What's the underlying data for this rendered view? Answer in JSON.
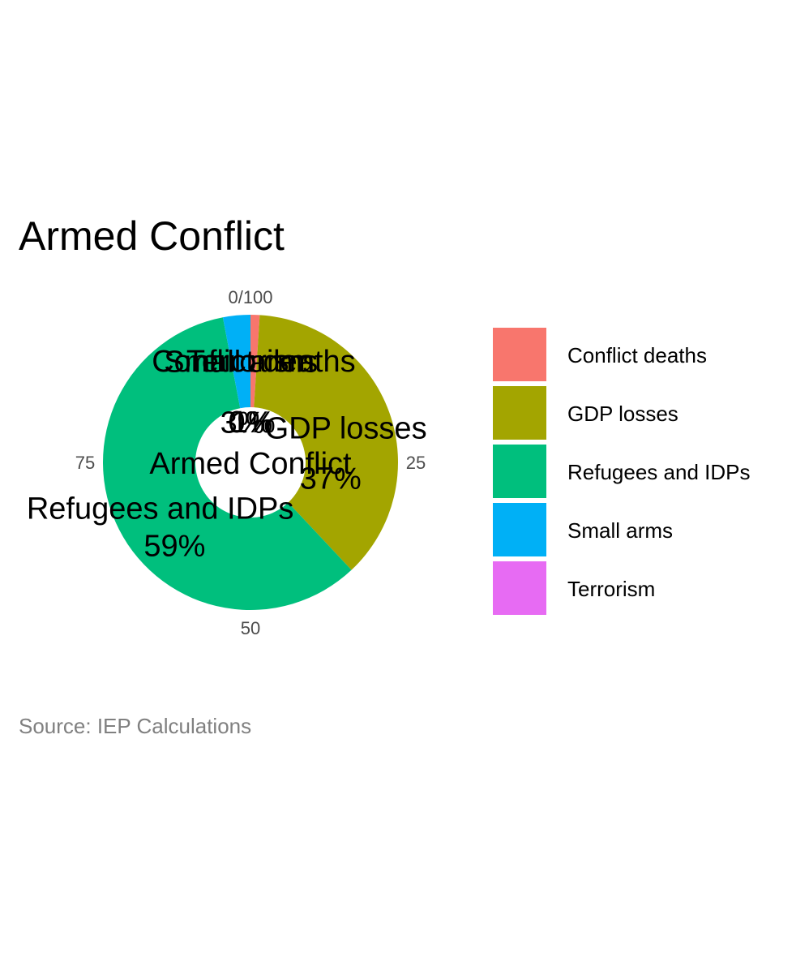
{
  "chart_data": {
    "type": "pie",
    "title": "Armed Conflict",
    "center_label": "Armed Conflict",
    "caption": "Source: IEP Calculations",
    "axis_ticks": [
      "0/100",
      "25",
      "50",
      "75"
    ],
    "categories": [
      "Conflict deaths",
      "GDP losses",
      "Refugees and IDPs",
      "Small arms",
      "Terrorism"
    ],
    "values": [
      1,
      37,
      59,
      3,
      0
    ],
    "labels": [
      "1%",
      "37%",
      "59%",
      "3%",
      "0%"
    ],
    "colors": [
      "#F8766D",
      "#A3A500",
      "#00BF7D",
      "#00B0F6",
      "#E76BF3"
    ],
    "legend_position": "right"
  }
}
